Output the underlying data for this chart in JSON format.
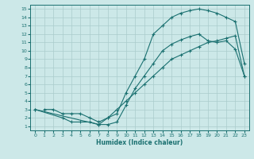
{
  "xlabel": "Humidex (Indice chaleur)",
  "bg_color": "#cce8e8",
  "grid_color": "#aacccc",
  "line_color": "#1a7070",
  "xlim": [
    -0.5,
    23.5
  ],
  "ylim": [
    0.5,
    15.5
  ],
  "xticks": [
    0,
    1,
    2,
    3,
    4,
    5,
    6,
    7,
    8,
    9,
    10,
    11,
    12,
    13,
    14,
    15,
    16,
    17,
    18,
    19,
    20,
    21,
    22,
    23
  ],
  "yticks": [
    1,
    2,
    3,
    4,
    5,
    6,
    7,
    8,
    9,
    10,
    11,
    12,
    13,
    14,
    15
  ],
  "curve1_x": [
    1,
    2,
    3,
    4,
    5,
    6,
    7,
    8,
    9,
    10,
    11,
    12,
    13,
    14,
    15,
    16,
    17,
    18,
    19,
    20,
    21,
    22,
    23
  ],
  "curve1_y": [
    3,
    3,
    2.5,
    2.5,
    2.5,
    2,
    1.5,
    2,
    2.5,
    5,
    7,
    9,
    12,
    13,
    14,
    14.5,
    14.8,
    15,
    14.8,
    14.5,
    14,
    13.5,
    8.5
  ],
  "curve2_x": [
    0,
    3,
    4,
    5,
    6,
    7,
    8,
    9,
    10,
    11,
    12,
    13,
    14,
    15,
    16,
    17,
    18,
    19,
    20,
    21,
    22,
    23
  ],
  "curve2_y": [
    3,
    2,
    1.5,
    1.5,
    1.5,
    1.2,
    1.2,
    1.5,
    3.5,
    5.5,
    7,
    8.5,
    10,
    10.8,
    11.3,
    11.7,
    12,
    11.2,
    11,
    11.2,
    10.2,
    7
  ],
  "curve3_x": [
    0,
    7,
    8,
    9,
    10,
    11,
    12,
    13,
    14,
    15,
    16,
    17,
    18,
    19,
    20,
    21,
    22,
    23
  ],
  "curve3_y": [
    3,
    1.2,
    2,
    3,
    4,
    5,
    6,
    7,
    8,
    9,
    9.5,
    10,
    10.5,
    11,
    11.2,
    11.5,
    11.8,
    7
  ]
}
